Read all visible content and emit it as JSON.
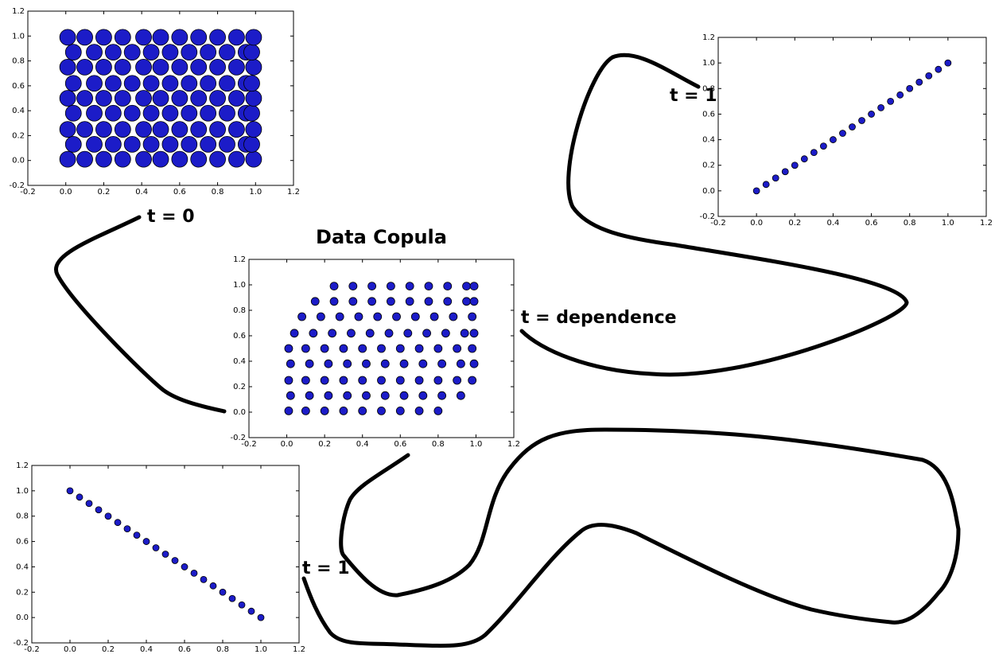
{
  "chart_data": [
    {
      "type": "scatter",
      "color": "#1c1cc8",
      "x": [
        0.01,
        0.1,
        0.2,
        0.3,
        0.41,
        0.5,
        0.6,
        0.7,
        0.8,
        0.9,
        0.99,
        0.04,
        0.15,
        0.25,
        0.35,
        0.45,
        0.55,
        0.65,
        0.75,
        0.85,
        0.95,
        0.98,
        0.01,
        0.1,
        0.2,
        0.3,
        0.41,
        0.5,
        0.6,
        0.7,
        0.8,
        0.9,
        0.99,
        0.04,
        0.15,
        0.25,
        0.35,
        0.45,
        0.55,
        0.65,
        0.75,
        0.85,
        0.95,
        0.98,
        0.01,
        0.1,
        0.2,
        0.3,
        0.41,
        0.5,
        0.6,
        0.7,
        0.8,
        0.9,
        0.99,
        0.04,
        0.15,
        0.25,
        0.35,
        0.45,
        0.55,
        0.65,
        0.75,
        0.85,
        0.95,
        0.98,
        0.01,
        0.1,
        0.2,
        0.3,
        0.41,
        0.5,
        0.6,
        0.7,
        0.8,
        0.9,
        0.99,
        0.04,
        0.15,
        0.25,
        0.35,
        0.45,
        0.55,
        0.65,
        0.75,
        0.85,
        0.95,
        0.98,
        0.01,
        0.1,
        0.2,
        0.3,
        0.41,
        0.5,
        0.6,
        0.7,
        0.8,
        0.9,
        0.99
      ],
      "values": [
        0.01,
        0.01,
        0.01,
        0.01,
        0.01,
        0.01,
        0.01,
        0.01,
        0.01,
        0.01,
        0.01,
        0.13,
        0.13,
        0.13,
        0.13,
        0.13,
        0.13,
        0.13,
        0.13,
        0.13,
        0.13,
        0.13,
        0.25,
        0.25,
        0.25,
        0.25,
        0.25,
        0.25,
        0.25,
        0.25,
        0.25,
        0.25,
        0.25,
        0.38,
        0.38,
        0.38,
        0.38,
        0.38,
        0.38,
        0.38,
        0.38,
        0.38,
        0.38,
        0.38,
        0.5,
        0.5,
        0.5,
        0.5,
        0.5,
        0.5,
        0.5,
        0.5,
        0.5,
        0.5,
        0.5,
        0.62,
        0.62,
        0.62,
        0.62,
        0.62,
        0.62,
        0.62,
        0.62,
        0.62,
        0.62,
        0.62,
        0.75,
        0.75,
        0.75,
        0.75,
        0.75,
        0.75,
        0.75,
        0.75,
        0.75,
        0.75,
        0.75,
        0.87,
        0.87,
        0.87,
        0.87,
        0.87,
        0.87,
        0.87,
        0.87,
        0.87,
        0.87,
        0.87,
        0.99,
        0.99,
        0.99,
        0.99,
        0.99,
        0.99,
        0.99,
        0.99,
        0.99,
        0.99,
        0.99
      ],
      "xlim": [
        -0.2,
        1.2
      ],
      "ylim": [
        -0.2,
        1.2
      ],
      "xticks": [
        -0.2,
        {
          "value": 0,
          "label": "0.0"
        },
        0.2,
        0.4,
        0.6,
        0.8,
        {
          "value": 1,
          "label": "1.0"
        },
        1.2
      ],
      "yticks": [
        -0.2,
        {
          "value": 0,
          "label": "0.0"
        },
        0.2,
        0.4,
        0.6,
        0.8,
        {
          "value": 1,
          "label": "1.0"
        },
        1.2
      ]
    },
    {
      "type": "scatter",
      "color": "#1c1cc8",
      "x": [
        0,
        0.05,
        0.1,
        0.15,
        0.2,
        0.25,
        0.3,
        0.35,
        0.4,
        0.45,
        0.5,
        0.55,
        0.6,
        0.65,
        0.7,
        0.75,
        0.8,
        0.85,
        0.9,
        0.95,
        1
      ],
      "values": [
        0,
        0.05,
        0.1,
        0.15,
        0.2,
        0.25,
        0.3,
        0.35,
        0.4,
        0.45,
        0.5,
        0.55,
        0.6,
        0.65,
        0.7,
        0.75,
        0.8,
        0.85,
        0.9,
        0.95,
        1
      ],
      "xlim": [
        -0.2,
        1.2
      ],
      "ylim": [
        -0.2,
        1.2
      ],
      "xticks": [
        -0.2,
        {
          "value": 0,
          "label": "0.0"
        },
        0.2,
        0.4,
        0.6,
        0.8,
        {
          "value": 1,
          "label": "1.0"
        },
        1.2
      ],
      "yticks": [
        -0.2,
        {
          "value": 0,
          "label": "0.0"
        },
        0.2,
        0.4,
        0.6,
        0.8,
        {
          "value": 1,
          "label": "1.0"
        },
        1.2
      ]
    },
    {
      "type": "scatter",
      "title": "Data Copula",
      "color": "#1c1cc8",
      "x": [
        0.01,
        0.1,
        0.2,
        0.3,
        0.4,
        0.5,
        0.6,
        0.7,
        0.8,
        0.02,
        0.12,
        0.22,
        0.32,
        0.42,
        0.52,
        0.62,
        0.72,
        0.82,
        0.92,
        0.01,
        0.1,
        0.2,
        0.3,
        0.4,
        0.5,
        0.6,
        0.7,
        0.8,
        0.9,
        0.98,
        0.02,
        0.12,
        0.22,
        0.32,
        0.42,
        0.52,
        0.62,
        0.72,
        0.82,
        0.92,
        0.99,
        0.01,
        0.1,
        0.2,
        0.3,
        0.4,
        0.5,
        0.6,
        0.7,
        0.8,
        0.9,
        0.98,
        0.04,
        0.14,
        0.24,
        0.34,
        0.44,
        0.54,
        0.64,
        0.74,
        0.84,
        0.94,
        0.99,
        0.08,
        0.18,
        0.28,
        0.38,
        0.48,
        0.58,
        0.68,
        0.78,
        0.88,
        0.98,
        0.15,
        0.25,
        0.35,
        0.45,
        0.55,
        0.65,
        0.75,
        0.85,
        0.95,
        0.99,
        0.25,
        0.35,
        0.45,
        0.55,
        0.65,
        0.75,
        0.85,
        0.95,
        0.99
      ],
      "values": [
        0.01,
        0.01,
        0.01,
        0.01,
        0.01,
        0.01,
        0.01,
        0.01,
        0.01,
        0.13,
        0.13,
        0.13,
        0.13,
        0.13,
        0.13,
        0.13,
        0.13,
        0.13,
        0.13,
        0.25,
        0.25,
        0.25,
        0.25,
        0.25,
        0.25,
        0.25,
        0.25,
        0.25,
        0.25,
        0.25,
        0.38,
        0.38,
        0.38,
        0.38,
        0.38,
        0.38,
        0.38,
        0.38,
        0.38,
        0.38,
        0.38,
        0.5,
        0.5,
        0.5,
        0.5,
        0.5,
        0.5,
        0.5,
        0.5,
        0.5,
        0.5,
        0.5,
        0.62,
        0.62,
        0.62,
        0.62,
        0.62,
        0.62,
        0.62,
        0.62,
        0.62,
        0.62,
        0.62,
        0.75,
        0.75,
        0.75,
        0.75,
        0.75,
        0.75,
        0.75,
        0.75,
        0.75,
        0.75,
        0.87,
        0.87,
        0.87,
        0.87,
        0.87,
        0.87,
        0.87,
        0.87,
        0.87,
        0.87,
        0.99,
        0.99,
        0.99,
        0.99,
        0.99,
        0.99,
        0.99,
        0.99,
        0.99
      ],
      "xlim": [
        -0.2,
        1.2
      ],
      "ylim": [
        -0.2,
        1.2
      ],
      "xticks": [
        -0.2,
        {
          "value": 0,
          "label": "0.0"
        },
        0.2,
        0.4,
        0.6,
        0.8,
        {
          "value": 1,
          "label": "1.0"
        },
        1.2
      ],
      "yticks": [
        -0.2,
        {
          "value": 0,
          "label": "0.0"
        },
        0.2,
        0.4,
        0.6,
        0.8,
        {
          "value": 1,
          "label": "1.0"
        },
        1.2
      ]
    },
    {
      "type": "scatter",
      "color": "#1c1cc8",
      "x": [
        0,
        0.05,
        0.1,
        0.15,
        0.2,
        0.25,
        0.3,
        0.35,
        0.4,
        0.45,
        0.5,
        0.55,
        0.6,
        0.65,
        0.7,
        0.75,
        0.8,
        0.85,
        0.9,
        0.95,
        1
      ],
      "values": [
        1,
        0.95,
        0.9,
        0.85,
        0.8,
        0.75,
        0.7,
        0.65,
        0.6,
        0.55,
        0.5,
        0.45,
        0.4,
        0.35,
        0.3,
        0.25,
        0.2,
        0.15,
        0.1,
        0.05,
        0
      ],
      "xlim": [
        -0.2,
        1.2
      ],
      "ylim": [
        -0.2,
        1.2
      ],
      "xticks": [
        -0.2,
        {
          "value": 0,
          "label": "0.0"
        },
        0.2,
        0.4,
        0.6,
        0.8,
        {
          "value": 1,
          "label": "1.0"
        },
        1.2
      ],
      "yticks": [
        -0.2,
        {
          "value": 0,
          "label": "0.0"
        },
        0.2,
        0.4,
        0.6,
        0.8,
        {
          "value": 1,
          "label": "1.0"
        },
        1.2
      ]
    }
  ],
  "annotations": [
    "t =  0",
    "t = 1",
    "t = dependence",
    "t = 1"
  ]
}
